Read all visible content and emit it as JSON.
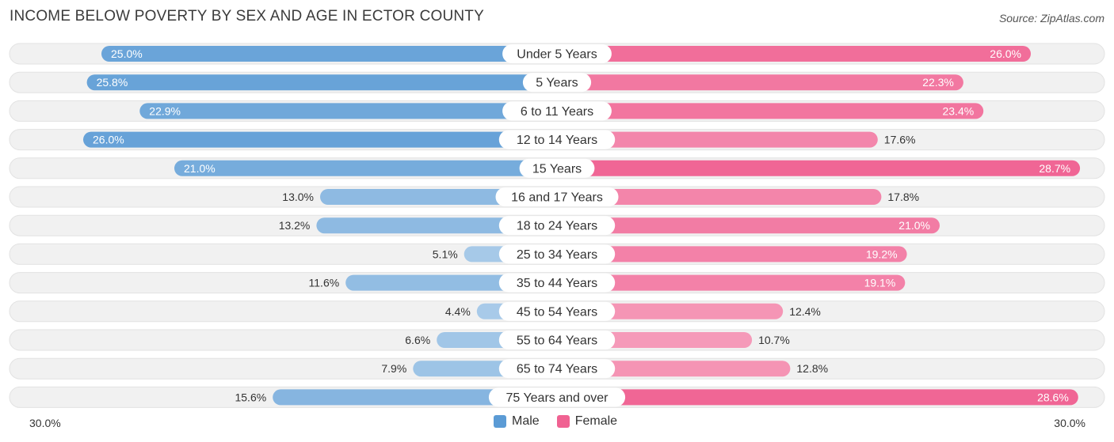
{
  "chart_data": {
    "type": "bar",
    "title": "INCOME BELOW POVERTY BY SEX AND AGE IN ECTOR COUNTY",
    "source": "Source: ZipAtlas.com",
    "categories": [
      "Under 5 Years",
      "5 Years",
      "6 to 11 Years",
      "12 to 14 Years",
      "15 Years",
      "16 and 17 Years",
      "18 to 24 Years",
      "25 to 34 Years",
      "35 to 44 Years",
      "45 to 54 Years",
      "55 to 64 Years",
      "65 to 74 Years",
      "75 Years and over"
    ],
    "series": [
      {
        "name": "Male",
        "color": "#5b9bd5",
        "values": [
          25.0,
          25.8,
          22.9,
          26.0,
          21.0,
          13.0,
          13.2,
          5.1,
          11.6,
          4.4,
          6.6,
          7.9,
          15.6
        ],
        "labels": [
          "25.0%",
          "25.8%",
          "22.9%",
          "26.0%",
          "21.0%",
          "13.0%",
          "13.2%",
          "5.1%",
          "11.6%",
          "4.4%",
          "6.6%",
          "7.9%",
          "15.6%"
        ]
      },
      {
        "name": "Female",
        "color": "#f06292",
        "values": [
          26.0,
          22.3,
          23.4,
          17.6,
          28.7,
          17.8,
          21.0,
          19.2,
          19.1,
          12.4,
          10.7,
          12.8,
          28.6
        ],
        "labels": [
          "26.0%",
          "22.3%",
          "23.4%",
          "17.6%",
          "28.7%",
          "17.8%",
          "21.0%",
          "19.2%",
          "19.1%",
          "12.4%",
          "10.7%",
          "12.8%",
          "28.6%"
        ]
      }
    ],
    "axis_max": 30.0,
    "axis_left_label": "30.0%",
    "axis_right_label": "30.0%",
    "legend": [
      "Male",
      "Female"
    ]
  }
}
